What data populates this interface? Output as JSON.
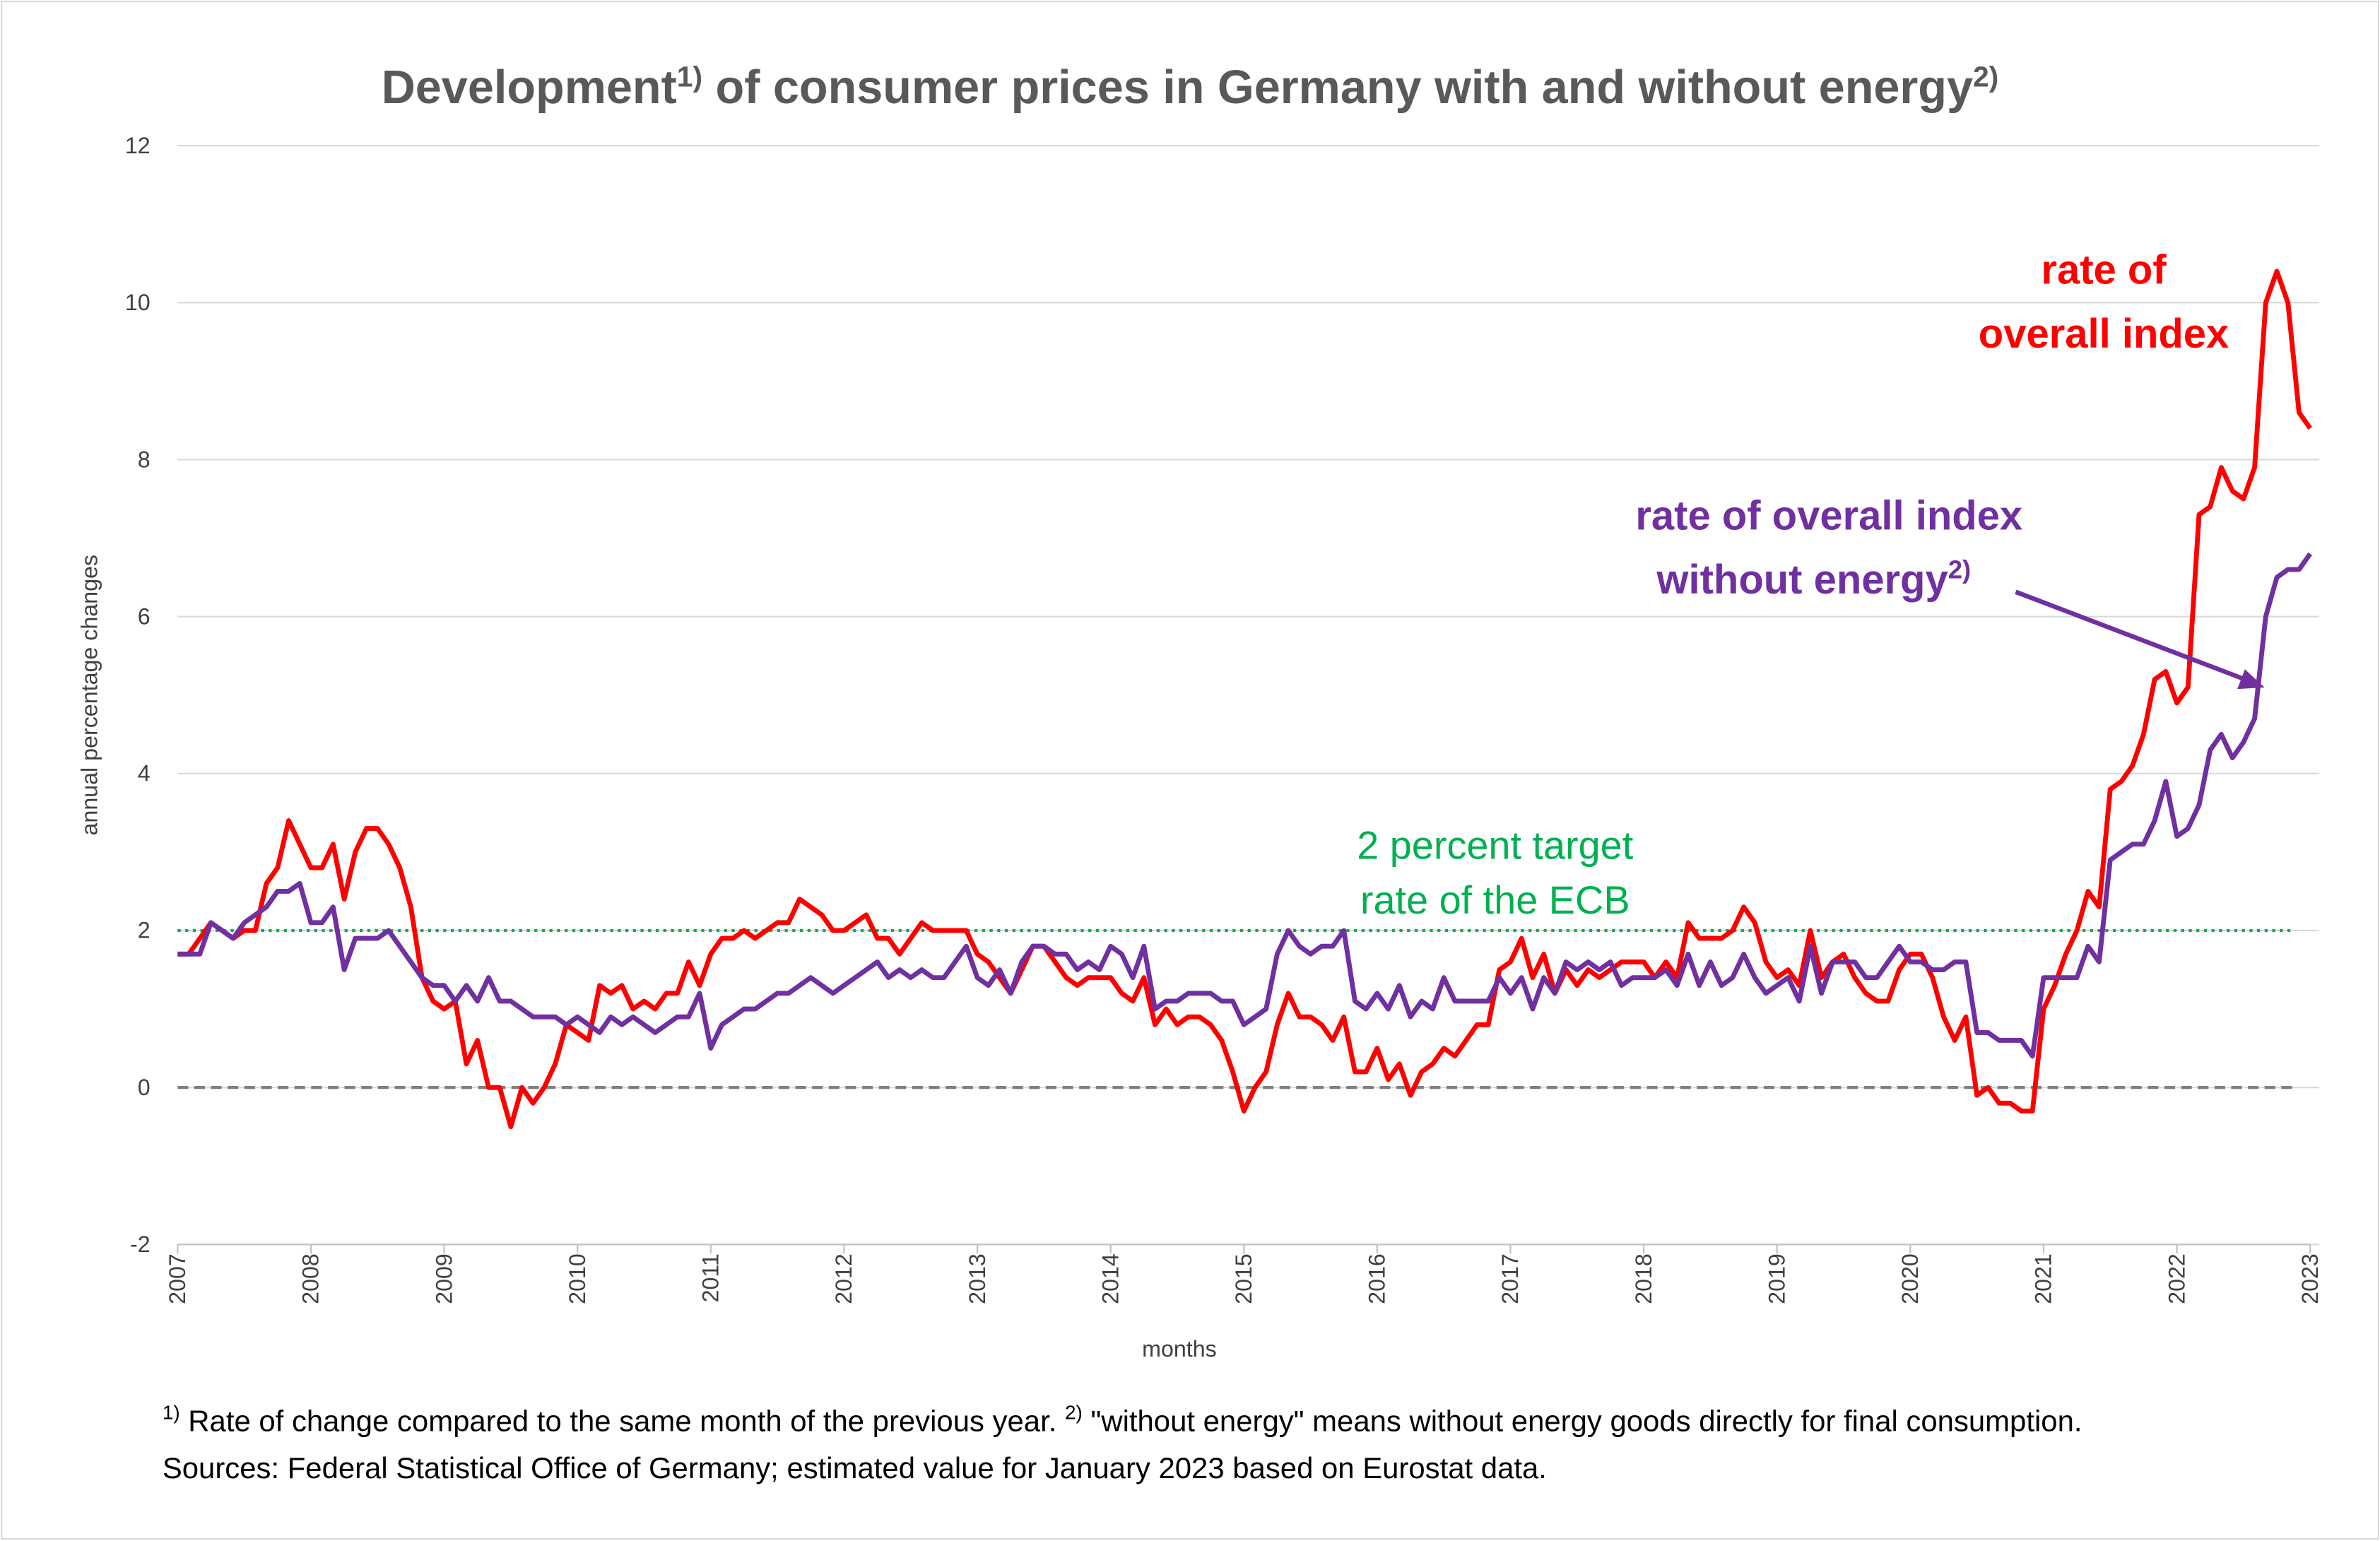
{
  "chart_data": {
    "type": "line",
    "title": [
      "Development",
      "1)",
      " of consumer prices in Germany with and without energy",
      "2)"
    ],
    "y_label": "annual percentage changes",
    "x_label": "months",
    "x": [
      "2007-01",
      "2007-02",
      "2007-03",
      "2007-04",
      "2007-05",
      "2007-06",
      "2007-07",
      "2007-08",
      "2007-09",
      "2007-10",
      "2007-11",
      "2007-12",
      "2008-01",
      "2008-02",
      "2008-03",
      "2008-04",
      "2008-05",
      "2008-06",
      "2008-07",
      "2008-08",
      "2008-09",
      "2008-10",
      "2008-11",
      "2008-12",
      "2009-01",
      "2009-02",
      "2009-03",
      "2009-04",
      "2009-05",
      "2009-06",
      "2009-07",
      "2009-08",
      "2009-09",
      "2009-10",
      "2009-11",
      "2009-12",
      "2010-01",
      "2010-02",
      "2010-03",
      "2010-04",
      "2010-05",
      "2010-06",
      "2010-07",
      "2010-08",
      "2010-09",
      "2010-10",
      "2010-11",
      "2010-12",
      "2011-01",
      "2011-02",
      "2011-03",
      "2011-04",
      "2011-05",
      "2011-06",
      "2011-07",
      "2011-08",
      "2011-09",
      "2011-10",
      "2011-11",
      "2011-12",
      "2012-01",
      "2012-02",
      "2012-03",
      "2012-04",
      "2012-05",
      "2012-06",
      "2012-07",
      "2012-08",
      "2012-09",
      "2012-10",
      "2012-11",
      "2012-12",
      "2013-01",
      "2013-02",
      "2013-03",
      "2013-04",
      "2013-05",
      "2013-06",
      "2013-07",
      "2013-08",
      "2013-09",
      "2013-10",
      "2013-11",
      "2013-12",
      "2014-01",
      "2014-02",
      "2014-03",
      "2014-04",
      "2014-05",
      "2014-06",
      "2014-07",
      "2014-08",
      "2014-09",
      "2014-10",
      "2014-11",
      "2014-12",
      "2015-01",
      "2015-02",
      "2015-03",
      "2015-04",
      "2015-05",
      "2015-06",
      "2015-07",
      "2015-08",
      "2015-09",
      "2015-10",
      "2015-11",
      "2015-12",
      "2016-01",
      "2016-02",
      "2016-03",
      "2016-04",
      "2016-05",
      "2016-06",
      "2016-07",
      "2016-08",
      "2016-09",
      "2016-10",
      "2016-11",
      "2016-12",
      "2017-01",
      "2017-02",
      "2017-03",
      "2017-04",
      "2017-05",
      "2017-06",
      "2017-07",
      "2017-08",
      "2017-09",
      "2017-10",
      "2017-11",
      "2017-12",
      "2018-01",
      "2018-02",
      "2018-03",
      "2018-04",
      "2018-05",
      "2018-06",
      "2018-07",
      "2018-08",
      "2018-09",
      "2018-10",
      "2018-11",
      "2018-12",
      "2019-01",
      "2019-02",
      "2019-03",
      "2019-04",
      "2019-05",
      "2019-06",
      "2019-07",
      "2019-08",
      "2019-09",
      "2019-10",
      "2019-11",
      "2019-12",
      "2020-01",
      "2020-02",
      "2020-03",
      "2020-04",
      "2020-05",
      "2020-06",
      "2020-07",
      "2020-08",
      "2020-09",
      "2020-10",
      "2020-11",
      "2020-12",
      "2021-01",
      "2021-02",
      "2021-03",
      "2021-04",
      "2021-05",
      "2021-06",
      "2021-07",
      "2021-08",
      "2021-09",
      "2021-10",
      "2021-11",
      "2021-12",
      "2022-01",
      "2022-02",
      "2022-03",
      "2022-04",
      "2022-05",
      "2022-06",
      "2022-07",
      "2022-08",
      "2022-09",
      "2022-10",
      "2022-11",
      "2022-12",
      "2023-01"
    ],
    "series": [
      {
        "name": [
          "rate of",
          "overall index"
        ],
        "color": "#ff0000",
        "values": [
          1.7,
          1.7,
          1.9,
          2.1,
          2.0,
          1.9,
          2.0,
          2.0,
          2.6,
          2.8,
          3.4,
          3.1,
          2.8,
          2.8,
          3.1,
          2.4,
          3.0,
          3.3,
          3.3,
          3.1,
          2.8,
          2.3,
          1.4,
          1.1,
          1.0,
          1.1,
          0.3,
          0.6,
          0.0,
          0.0,
          -0.5,
          0.0,
          -0.2,
          0.0,
          0.3,
          0.8,
          0.7,
          0.6,
          1.3,
          1.2,
          1.3,
          1.0,
          1.1,
          1.0,
          1.2,
          1.2,
          1.6,
          1.3,
          1.7,
          1.9,
          1.9,
          2.0,
          1.9,
          2.0,
          2.1,
          2.1,
          2.4,
          2.3,
          2.2,
          2.0,
          2.0,
          2.1,
          2.2,
          1.9,
          1.9,
          1.7,
          1.9,
          2.1,
          2.0,
          2.0,
          2.0,
          2.0,
          1.7,
          1.6,
          1.4,
          1.2,
          1.5,
          1.8,
          1.8,
          1.6,
          1.4,
          1.3,
          1.4,
          1.4,
          1.4,
          1.2,
          1.1,
          1.4,
          0.8,
          1.0,
          0.8,
          0.9,
          0.9,
          0.8,
          0.6,
          0.2,
          -0.3,
          0.0,
          0.2,
          0.8,
          1.2,
          0.9,
          0.9,
          0.8,
          0.6,
          0.9,
          0.2,
          0.2,
          0.5,
          0.1,
          0.3,
          -0.1,
          0.2,
          0.3,
          0.5,
          0.4,
          0.6,
          0.8,
          0.8,
          1.5,
          1.6,
          1.9,
          1.4,
          1.7,
          1.2,
          1.5,
          1.3,
          1.5,
          1.4,
          1.5,
          1.6,
          1.6,
          1.6,
          1.4,
          1.6,
          1.4,
          2.1,
          1.9,
          1.9,
          1.9,
          2.0,
          2.3,
          2.1,
          1.6,
          1.4,
          1.5,
          1.3,
          2.0,
          1.4,
          1.6,
          1.7,
          1.4,
          1.2,
          1.1,
          1.1,
          1.5,
          1.7,
          1.7,
          1.4,
          0.9,
          0.6,
          0.9,
          -0.1,
          0.0,
          -0.2,
          -0.2,
          -0.3,
          -0.3,
          1.0,
          1.3,
          1.7,
          2.0,
          2.5,
          2.3,
          3.8,
          3.9,
          4.1,
          4.5,
          5.2,
          5.3,
          4.9,
          5.1,
          7.3,
          7.4,
          7.9,
          7.6,
          7.5,
          7.9,
          10.0,
          10.4,
          10.0,
          8.6,
          8.4
        ]
      },
      {
        "name": [
          "rate of overall index",
          "without energy",
          "2)"
        ],
        "color": "#7030a0",
        "values": [
          1.7,
          1.7,
          1.7,
          2.1,
          2.0,
          1.9,
          2.1,
          2.2,
          2.3,
          2.5,
          2.5,
          2.6,
          2.1,
          2.1,
          2.3,
          1.5,
          1.9,
          1.9,
          1.9,
          2.0,
          1.8,
          1.6,
          1.4,
          1.3,
          1.3,
          1.1,
          1.3,
          1.1,
          1.4,
          1.1,
          1.1,
          1.0,
          0.9,
          0.9,
          0.9,
          0.8,
          0.9,
          0.8,
          0.7,
          0.9,
          0.8,
          0.9,
          0.8,
          0.7,
          0.8,
          0.9,
          0.9,
          1.2,
          0.5,
          0.8,
          0.9,
          1.0,
          1.0,
          1.1,
          1.2,
          1.2,
          1.3,
          1.4,
          1.3,
          1.2,
          1.3,
          1.4,
          1.5,
          1.6,
          1.4,
          1.5,
          1.4,
          1.5,
          1.4,
          1.4,
          1.6,
          1.8,
          1.4,
          1.3,
          1.5,
          1.2,
          1.6,
          1.8,
          1.8,
          1.7,
          1.7,
          1.5,
          1.6,
          1.5,
          1.8,
          1.7,
          1.4,
          1.8,
          1.0,
          1.1,
          1.1,
          1.2,
          1.2,
          1.2,
          1.1,
          1.1,
          0.8,
          0.9,
          1.0,
          1.7,
          2.0,
          1.8,
          1.7,
          1.8,
          1.8,
          2.0,
          1.1,
          1.0,
          1.2,
          1.0,
          1.3,
          0.9,
          1.1,
          1.0,
          1.4,
          1.1,
          1.1,
          1.1,
          1.1,
          1.4,
          1.2,
          1.4,
          1.0,
          1.4,
          1.2,
          1.6,
          1.5,
          1.6,
          1.5,
          1.6,
          1.3,
          1.4,
          1.4,
          1.4,
          1.5,
          1.3,
          1.7,
          1.3,
          1.6,
          1.3,
          1.4,
          1.7,
          1.4,
          1.2,
          1.3,
          1.4,
          1.1,
          1.8,
          1.2,
          1.6,
          1.6,
          1.6,
          1.4,
          1.4,
          1.6,
          1.8,
          1.6,
          1.6,
          1.5,
          1.5,
          1.6,
          1.6,
          0.7,
          0.7,
          0.6,
          0.6,
          0.6,
          0.4,
          1.4,
          1.4,
          1.4,
          1.4,
          1.8,
          1.6,
          2.9,
          3.0,
          3.1,
          3.1,
          3.4,
          3.9,
          3.2,
          3.3,
          3.6,
          4.3,
          4.5,
          4.2,
          4.4,
          4.7,
          6.0,
          6.5,
          6.6,
          6.6,
          6.8
        ]
      }
    ],
    "reference_lines": [
      {
        "value": 2,
        "color": "#00b050",
        "label": [
          "2 percent target",
          "rate of the ECB"
        ]
      },
      {
        "value": 0,
        "color": "#7f7f7f"
      }
    ],
    "xlim": [
      2007,
      2023
    ],
    "xticks": [
      2007,
      2008,
      2009,
      2010,
      2011,
      2012,
      2013,
      2014,
      2015,
      2016,
      2017,
      2018,
      2019,
      2020,
      2021,
      2022,
      2023
    ],
    "ylim": [
      -2,
      12
    ],
    "yticks": [
      -2,
      0,
      2,
      4,
      6,
      8,
      10,
      12
    ],
    "grid": true,
    "footnote": [
      [
        "1)",
        " Rate of change compared to the same month of the previous year. ",
        "2)",
        " \"without energy\" means without energy goods directly for final consumption."
      ],
      [
        "Sources: Federal Statistical Office of Germany; estimated value for January 2023 based on Eurostat data."
      ]
    ]
  }
}
